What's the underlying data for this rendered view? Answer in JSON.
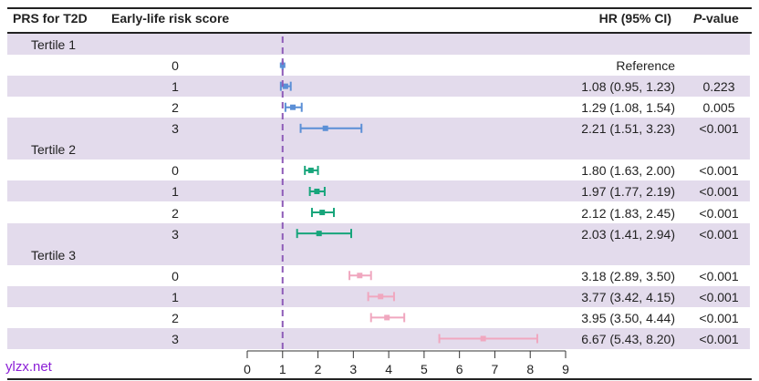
{
  "headers": {
    "prs": "PRS for T2D",
    "score": "Early-life risk score",
    "hr": "HR (95% CI)",
    "p_italic": "P",
    "p_rest": "-value"
  },
  "watermark": "ylzx.net",
  "colors": {
    "Tertile 1": "#5b8fd6",
    "Tertile 2": "#17a57b",
    "Tertile 3": "#f0a7bf",
    "stripe": "#e3dbec",
    "refline": "#8e5cb8"
  },
  "chart_data": {
    "type": "forest",
    "xlim": [
      0,
      9
    ],
    "xticks": [
      "0",
      "1",
      "2",
      "3",
      "4",
      "5",
      "6",
      "7",
      "8",
      "9"
    ],
    "reference_line": 1,
    "groups": [
      {
        "name": "Tertile 1",
        "rows": [
          {
            "score": "0",
            "hr": 1,
            "lo": 1,
            "hi": 1,
            "label": "Reference",
            "p": ""
          },
          {
            "score": "1",
            "hr": 1.08,
            "lo": 0.95,
            "hi": 1.23,
            "label": "1.08 (0.95, 1.23)",
            "p": "0.223"
          },
          {
            "score": "2",
            "hr": 1.29,
            "lo": 1.08,
            "hi": 1.54,
            "label": "1.29 (1.08, 1.54)",
            "p": "0.005"
          },
          {
            "score": "3",
            "hr": 2.21,
            "lo": 1.51,
            "hi": 3.23,
            "label": "2.21 (1.51, 3.23)",
            "p": "<0.001"
          }
        ]
      },
      {
        "name": "Tertile 2",
        "rows": [
          {
            "score": "0",
            "hr": 1.8,
            "lo": 1.63,
            "hi": 2.0,
            "label": "1.80 (1.63, 2.00)",
            "p": "<0.001"
          },
          {
            "score": "1",
            "hr": 1.97,
            "lo": 1.77,
            "hi": 2.19,
            "label": "1.97 (1.77, 2.19)",
            "p": "<0.001"
          },
          {
            "score": "2",
            "hr": 2.12,
            "lo": 1.83,
            "hi": 2.45,
            "label": "2.12 (1.83, 2.45)",
            "p": "<0.001"
          },
          {
            "score": "3",
            "hr": 2.03,
            "lo": 1.41,
            "hi": 2.94,
            "label": "2.03 (1.41, 2.94)",
            "p": "<0.001"
          }
        ]
      },
      {
        "name": "Tertile 3",
        "rows": [
          {
            "score": "0",
            "hr": 3.18,
            "lo": 2.89,
            "hi": 3.5,
            "label": "3.18 (2.89, 3.50)",
            "p": "<0.001"
          },
          {
            "score": "1",
            "hr": 3.77,
            "lo": 3.42,
            "hi": 4.15,
            "label": "3.77 (3.42, 4.15)",
            "p": "<0.001"
          },
          {
            "score": "2",
            "hr": 3.95,
            "lo": 3.5,
            "hi": 4.44,
            "label": "3.95 (3.50, 4.44)",
            "p": "<0.001"
          },
          {
            "score": "3",
            "hr": 6.67,
            "lo": 5.43,
            "hi": 8.2,
            "label": "6.67 (5.43, 8.20)",
            "p": "<0.001"
          }
        ]
      }
    ]
  }
}
